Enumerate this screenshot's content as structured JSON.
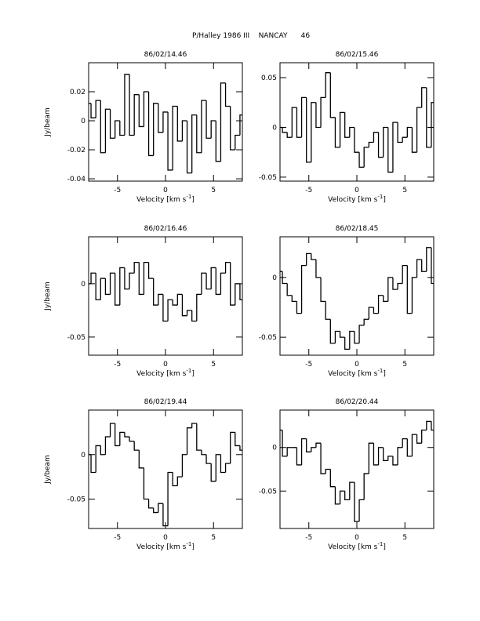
{
  "page_title": "P/Halley 1986 III    NANCAY      46",
  "chart_data": [
    {
      "type": "line",
      "drawstyle": "steps-mid",
      "title": "86/02/14.46",
      "xlabel": "Velocity [km s",
      "xlabel_sup": "-1",
      "xlabel_end": "]",
      "ylabel": "Jy/beam",
      "xlim": [
        -8,
        8
      ],
      "xticks": [
        -5,
        0,
        5
      ],
      "ylim": [
        -0.0416,
        0.04
      ],
      "yticks": [
        -0.04,
        -0.02,
        0,
        0.02
      ],
      "color": "#000000",
      "x": [
        -8,
        -7.5,
        -7,
        -6.5,
        -6,
        -5.5,
        -5,
        -4.5,
        -4,
        -3.5,
        -3,
        -2.5,
        -2,
        -1.5,
        -1,
        -0.5,
        0,
        0.5,
        1,
        1.5,
        2,
        2.5,
        3,
        3.5,
        4,
        4.5,
        5,
        5.5,
        6,
        6.5,
        7,
        7.5,
        8
      ],
      "values": [
        0.012,
        0.002,
        0.014,
        -0.022,
        0.008,
        -0.012,
        0.0,
        -0.01,
        0.032,
        -0.01,
        0.018,
        -0.004,
        0.02,
        -0.024,
        0.012,
        -0.008,
        0.006,
        -0.034,
        0.01,
        -0.014,
        0.0,
        -0.036,
        0.004,
        -0.022,
        0.014,
        -0.012,
        0.0,
        -0.028,
        0.026,
        0.01,
        -0.02,
        -0.01,
        0.004
      ]
    },
    {
      "type": "line",
      "drawstyle": "steps-mid",
      "title": "86/02/15.46",
      "xlabel": "Velocity [km s",
      "xlabel_sup": "-1",
      "xlabel_end": "]",
      "xlim": [
        -8,
        8
      ],
      "xticks": [
        -5,
        0,
        5
      ],
      "ylim": [
        -0.054,
        0.065
      ],
      "yticks": [
        -0.05,
        0,
        0.05
      ],
      "color": "#000000",
      "x": [
        -8,
        -7.5,
        -7,
        -6.5,
        -6,
        -5.5,
        -5,
        -4.5,
        -4,
        -3.5,
        -3,
        -2.5,
        -2,
        -1.5,
        -1,
        -0.5,
        0,
        0.5,
        1,
        1.5,
        2,
        2.5,
        3,
        3.5,
        4,
        4.5,
        5,
        5.5,
        6,
        6.5,
        7,
        7.5,
        8
      ],
      "values": [
        0.0,
        -0.005,
        -0.01,
        0.02,
        -0.01,
        0.03,
        -0.035,
        0.025,
        0.0,
        0.03,
        0.055,
        0.01,
        -0.02,
        0.015,
        -0.01,
        0.0,
        -0.025,
        -0.04,
        -0.02,
        -0.015,
        -0.005,
        -0.03,
        0.0,
        -0.045,
        0.005,
        -0.015,
        -0.01,
        0.0,
        -0.025,
        0.02,
        0.04,
        -0.02,
        0.025
      ]
    },
    {
      "type": "line",
      "drawstyle": "steps-mid",
      "title": "86/02/16.46",
      "xlabel": "Velocity [km s",
      "xlabel_sup": "-1",
      "xlabel_end": "]",
      "ylabel": "Jy/beam",
      "xlim": [
        -8,
        8
      ],
      "xticks": [
        -5,
        0,
        5
      ],
      "ylim": [
        -0.067,
        0.044
      ],
      "yticks": [
        -0.05,
        0
      ],
      "color": "#000000",
      "x": [
        -8,
        -7.5,
        -7,
        -6.5,
        -6,
        -5.5,
        -5,
        -4.5,
        -4,
        -3.5,
        -3,
        -2.5,
        -2,
        -1.5,
        -1,
        -0.5,
        0,
        0.5,
        1,
        1.5,
        2,
        2.5,
        3,
        3.5,
        4,
        4.5,
        5,
        5.5,
        6,
        6.5,
        7,
        7.5,
        8
      ],
      "values": [
        0.0,
        0.01,
        -0.015,
        0.005,
        -0.01,
        0.01,
        -0.02,
        0.015,
        -0.005,
        0.01,
        0.02,
        -0.01,
        0.02,
        0.005,
        -0.02,
        -0.01,
        -0.035,
        -0.015,
        -0.02,
        -0.01,
        -0.03,
        -0.025,
        -0.035,
        -0.01,
        0.01,
        -0.005,
        0.015,
        -0.01,
        0.01,
        0.02,
        -0.02,
        0.0,
        -0.015
      ]
    },
    {
      "type": "line",
      "drawstyle": "steps-mid",
      "title": "86/02/18.45",
      "xlabel": "Velocity [km s",
      "xlabel_sup": "-1",
      "xlabel_end": "]",
      "xlim": [
        -8,
        8
      ],
      "xticks": [
        -5,
        0,
        5
      ],
      "ylim": [
        -0.065,
        0.034
      ],
      "yticks": [
        -0.05,
        0
      ],
      "color": "#000000",
      "x": [
        -8,
        -7.5,
        -7,
        -6.5,
        -6,
        -5.5,
        -5,
        -4.5,
        -4,
        -3.5,
        -3,
        -2.5,
        -2,
        -1.5,
        -1,
        -0.5,
        0,
        0.5,
        1,
        1.5,
        2,
        2.5,
        3,
        3.5,
        4,
        4.5,
        5,
        5.5,
        6,
        6.5,
        7,
        7.5,
        8
      ],
      "values": [
        0.005,
        -0.005,
        -0.015,
        -0.02,
        -0.03,
        0.01,
        0.02,
        0.015,
        0.0,
        -0.02,
        -0.035,
        -0.055,
        -0.045,
        -0.05,
        -0.06,
        -0.045,
        -0.055,
        -0.04,
        -0.035,
        -0.025,
        -0.03,
        -0.015,
        -0.02,
        0.0,
        -0.01,
        -0.005,
        0.01,
        -0.03,
        0.0,
        0.015,
        0.005,
        0.025,
        -0.005
      ]
    },
    {
      "type": "line",
      "drawstyle": "steps-mid",
      "title": "86/02/19.44",
      "xlabel": "Velocity [km s",
      "xlabel_sup": "-1",
      "xlabel_end": "]",
      "ylabel": "Jy/beam",
      "xlim": [
        -8,
        8
      ],
      "xticks": [
        -5,
        0,
        5
      ],
      "ylim": [
        -0.083,
        0.05
      ],
      "yticks": [
        -0.05,
        0
      ],
      "color": "#000000",
      "x": [
        -8,
        -7.5,
        -7,
        -6.5,
        -6,
        -5.5,
        -5,
        -4.5,
        -4,
        -3.5,
        -3,
        -2.5,
        -2,
        -1.5,
        -1,
        -0.5,
        0,
        0.5,
        1,
        1.5,
        2,
        2.5,
        3,
        3.5,
        4,
        4.5,
        5,
        5.5,
        6,
        6.5,
        7,
        7.5,
        8
      ],
      "values": [
        0.0,
        -0.02,
        0.01,
        0.0,
        0.02,
        0.035,
        0.01,
        0.025,
        0.02,
        0.015,
        0.005,
        -0.015,
        -0.05,
        -0.06,
        -0.065,
        -0.055,
        -0.08,
        -0.02,
        -0.035,
        -0.025,
        0.0,
        0.03,
        0.035,
        0.005,
        0.0,
        -0.01,
        -0.03,
        0.0,
        -0.02,
        -0.01,
        0.025,
        0.01,
        0.005
      ]
    },
    {
      "type": "line",
      "drawstyle": "steps-mid",
      "title": "86/02/20.44",
      "xlabel": "Velocity [km s",
      "xlabel_sup": "-1",
      "xlabel_end": "]",
      "xlim": [
        -8,
        8
      ],
      "xticks": [
        -5,
        0,
        5
      ],
      "ylim": [
        -0.093,
        0.043
      ],
      "yticks": [
        -0.05,
        0
      ],
      "color": "#000000",
      "x": [
        -8,
        -7.5,
        -7,
        -6.5,
        -6,
        -5.5,
        -5,
        -4.5,
        -4,
        -3.5,
        -3,
        -2.5,
        -2,
        -1.5,
        -1,
        -0.5,
        0,
        0.5,
        1,
        1.5,
        2,
        2.5,
        3,
        3.5,
        4,
        4.5,
        5,
        5.5,
        6,
        6.5,
        7,
        7.5,
        8
      ],
      "values": [
        0.02,
        -0.01,
        0.0,
        0.0,
        -0.02,
        0.01,
        -0.005,
        0.0,
        0.005,
        -0.03,
        -0.025,
        -0.045,
        -0.065,
        -0.05,
        -0.06,
        -0.04,
        -0.085,
        -0.06,
        -0.03,
        0.005,
        -0.02,
        0.0,
        -0.015,
        -0.01,
        -0.02,
        0.0,
        0.01,
        -0.01,
        0.015,
        0.005,
        0.02,
        0.03,
        0.02
      ]
    }
  ]
}
